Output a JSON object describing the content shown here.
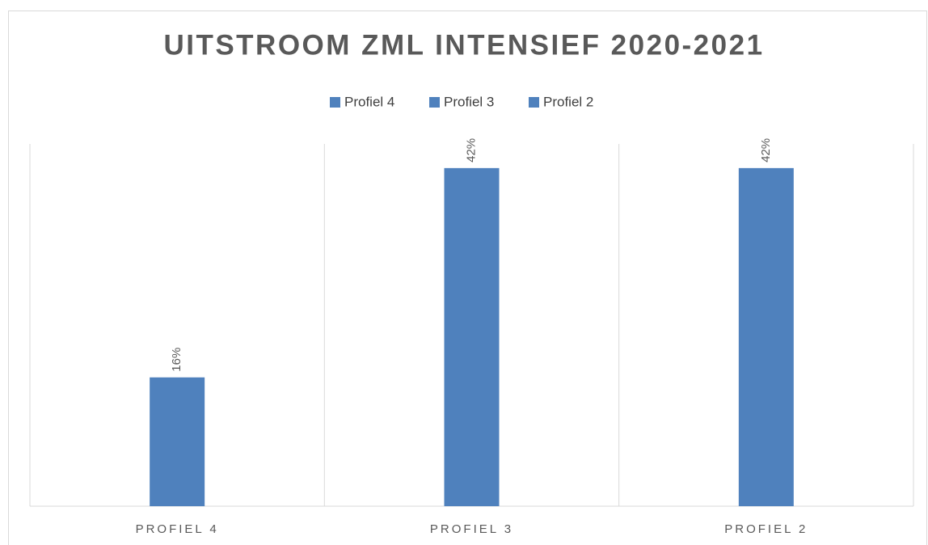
{
  "chart_data": {
    "type": "bar",
    "title": "UITSTROOM ZML INTENSIEF 2020-2021",
    "legend": [
      "Profiel 4",
      "Profiel 3",
      "Profiel 2"
    ],
    "categories": [
      "PROFIEL 4",
      "PROFIEL 3",
      "PROFIEL 2"
    ],
    "values": [
      16,
      42,
      42
    ],
    "value_labels": [
      "16%",
      "42%",
      "42%"
    ],
    "color": "#4f81bd",
    "ylim": [
      0,
      45
    ],
    "legend_position": "top"
  }
}
